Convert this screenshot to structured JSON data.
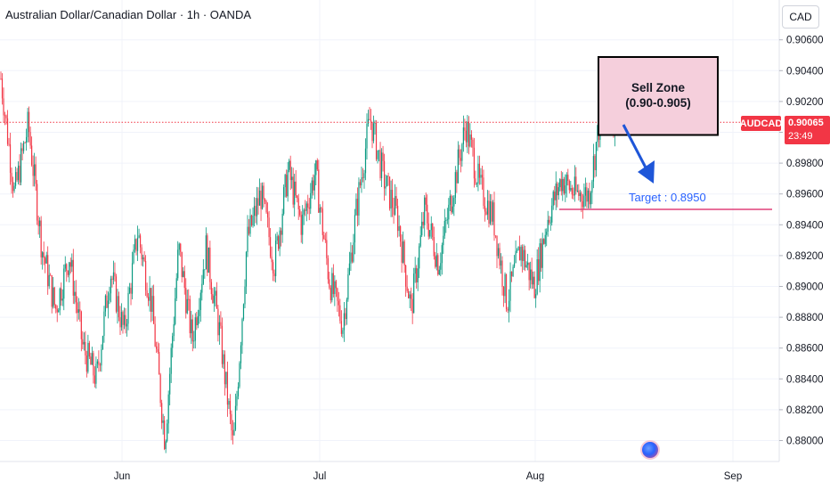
{
  "header": {
    "title": "Australian Dollar/Canadian Dollar · 1h · OANDA",
    "currency_button": "CAD"
  },
  "price_tag": {
    "symbol": "AUDCAD",
    "price": "0.90065",
    "countdown": "23:49"
  },
  "annotations": {
    "sell_zone_title": "Sell Zone",
    "sell_zone_range": "(0.90-0.905)",
    "target_label": "Target : 0.8950"
  },
  "colors": {
    "up": "#089981",
    "down": "#f23645",
    "sell_zone_fill": "#f5cfdc",
    "target_line": "#e0407a",
    "arrow": "#1e56d8",
    "target_text": "#2962ff"
  },
  "chart_data": {
    "type": "candlestick",
    "title": "Australian Dollar/Canadian Dollar · 1h · OANDA",
    "ylim": [
      0.8792,
      0.9073
    ],
    "y_ticks": [
      "0.88000",
      "0.88200",
      "0.88400",
      "0.88600",
      "0.88800",
      "0.89000",
      "0.89200",
      "0.89400",
      "0.89600",
      "0.89800",
      "0.90000",
      "0.90200",
      "0.90400",
      "0.90600"
    ],
    "x_ticks": [
      "Jun",
      "Jul",
      "Aug",
      "Sep"
    ],
    "current_price": 0.90065,
    "sell_zone": [
      0.9,
      0.905
    ],
    "target": 0.895,
    "approx_close_path": [
      {
        "x": "start",
        "y": 0.9035
      },
      {
        "x": "",
        "y": 0.896
      },
      {
        "x": "",
        "y": 0.9005
      },
      {
        "x": "",
        "y": 0.8925
      },
      {
        "x": "",
        "y": 0.8885
      },
      {
        "x": "",
        "y": 0.892
      },
      {
        "x": "",
        "y": 0.886
      },
      {
        "x": "Jun",
        "y": 0.884
      },
      {
        "x": "",
        "y": 0.891
      },
      {
        "x": "",
        "y": 0.887
      },
      {
        "x": "",
        "y": 0.8935
      },
      {
        "x": "",
        "y": 0.889
      },
      {
        "x": "",
        "y": 0.88
      },
      {
        "x": "",
        "y": 0.8925
      },
      {
        "x": "",
        "y": 0.8865
      },
      {
        "x": "",
        "y": 0.8925
      },
      {
        "x": "",
        "y": 0.887
      },
      {
        "x": "",
        "y": 0.8795
      },
      {
        "x": "",
        "y": 0.893
      },
      {
        "x": "",
        "y": 0.896
      },
      {
        "x": "",
        "y": 0.8915
      },
      {
        "x": "",
        "y": 0.8975
      },
      {
        "x": "Jul",
        "y": 0.894
      },
      {
        "x": "",
        "y": 0.8975
      },
      {
        "x": "",
        "y": 0.8905
      },
      {
        "x": "",
        "y": 0.8875
      },
      {
        "x": "",
        "y": 0.895
      },
      {
        "x": "",
        "y": 0.901
      },
      {
        "x": "",
        "y": 0.897
      },
      {
        "x": "",
        "y": 0.8945
      },
      {
        "x": "",
        "y": 0.8885
      },
      {
        "x": "",
        "y": 0.895
      },
      {
        "x": "",
        "y": 0.8915
      },
      {
        "x": "",
        "y": 0.896
      },
      {
        "x": "",
        "y": 0.9005
      },
      {
        "x": "",
        "y": 0.8965
      },
      {
        "x": "",
        "y": 0.8945
      },
      {
        "x": "Aug",
        "y": 0.889
      },
      {
        "x": "",
        "y": 0.8925
      },
      {
        "x": "",
        "y": 0.89
      },
      {
        "x": "",
        "y": 0.8945
      },
      {
        "x": "",
        "y": 0.897
      },
      {
        "x": "",
        "y": 0.896
      },
      {
        "x": "",
        "y": 0.896
      },
      {
        "x": "",
        "y": 0.902
      },
      {
        "x": "last",
        "y": 0.90065
      }
    ]
  }
}
